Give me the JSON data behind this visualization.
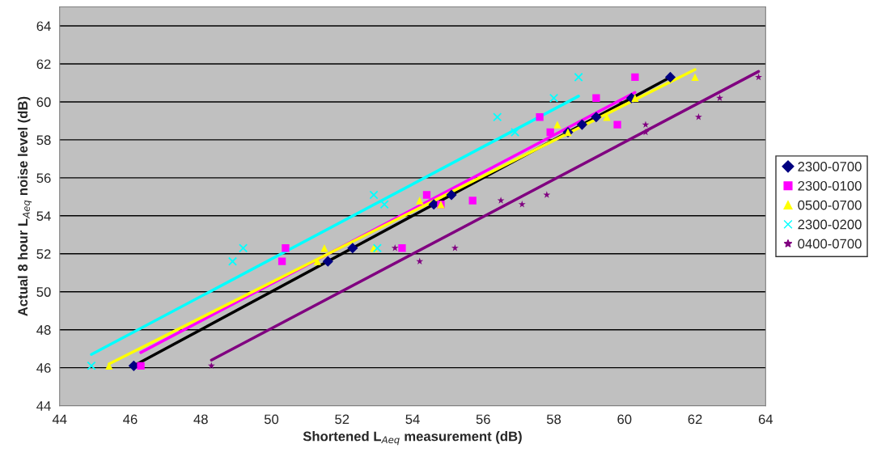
{
  "chart_data": {
    "type": "scatter",
    "xlabel": "Shortened L$_{Aeq}$ measurement (dB)",
    "ylabel": "Actual 8 hour L$_{Aeq}$ noise level (dB)",
    "xlim": [
      44,
      64
    ],
    "ylim": [
      44,
      65
    ],
    "xticks": [
      44,
      46,
      48,
      50,
      52,
      54,
      56,
      58,
      60,
      62,
      64
    ],
    "yticks": [
      44,
      46,
      48,
      50,
      52,
      54,
      56,
      58,
      60,
      62,
      64
    ],
    "grid": "y",
    "legend": "right",
    "series": [
      {
        "name": "2300-0700",
        "color": "#000080",
        "marker": "diamond",
        "x": [
          46.1,
          51.6,
          52.3,
          54.6,
          55.1,
          58.4,
          58.8,
          59.2,
          60.2,
          61.3
        ],
        "values": [
          46.1,
          51.6,
          52.3,
          54.6,
          55.1,
          58.4,
          58.8,
          59.2,
          60.2,
          61.3
        ]
      },
      {
        "name": "2300-0100",
        "color": "#ff00ff",
        "marker": "square",
        "x": [
          46.3,
          50.3,
          50.4,
          53.7,
          54.4,
          54.8,
          55.7,
          57.6,
          57.9,
          59.2,
          59.8,
          60.3
        ],
        "values": [
          46.1,
          51.6,
          52.3,
          52.3,
          55.1,
          54.6,
          54.8,
          59.2,
          58.4,
          60.2,
          58.8,
          61.3
        ]
      },
      {
        "name": "0500-0700",
        "color": "#ffff00",
        "marker": "triangle",
        "x": [
          45.4,
          51.3,
          51.5,
          52.9,
          54.2,
          54.8,
          58.1,
          58.4,
          59.5,
          60.3,
          62.0
        ],
        "values": [
          46.1,
          51.6,
          52.3,
          52.3,
          54.8,
          54.6,
          58.8,
          58.4,
          59.2,
          60.2,
          61.3
        ]
      },
      {
        "name": "2300-0200",
        "color": "#00ffff",
        "marker": "cross",
        "x": [
          44.9,
          48.9,
          49.2,
          52.9,
          53.0,
          53.2,
          56.4,
          56.9,
          58.0,
          58.7
        ],
        "values": [
          46.1,
          51.6,
          52.3,
          55.1,
          52.3,
          54.6,
          59.2,
          58.4,
          60.2,
          61.3
        ]
      },
      {
        "name": "0400-0700",
        "color": "#800080",
        "marker": "star",
        "x": [
          48.3,
          53.5,
          54.2,
          55.2,
          56.5,
          57.1,
          57.8,
          60.6,
          60.6,
          62.1,
          62.7,
          63.8
        ],
        "values": [
          46.1,
          52.3,
          51.6,
          52.3,
          54.8,
          54.6,
          55.1,
          58.8,
          58.4,
          59.2,
          60.2,
          61.3
        ]
      },
      {
        "type": "line",
        "color": "#000000",
        "x": [
          46.1,
          61.3
        ],
        "values": [
          46.1,
          61.3
        ]
      },
      {
        "type": "line",
        "color": "#ff00ff",
        "x": [
          46.3,
          60.3
        ],
        "values": [
          46.8,
          60.5
        ]
      },
      {
        "type": "line",
        "color": "#ffff00",
        "x": [
          45.4,
          62.0
        ],
        "values": [
          46.2,
          61.7
        ]
      },
      {
        "type": "line",
        "color": "#00ffff",
        "x": [
          44.9,
          58.7
        ],
        "values": [
          46.7,
          60.3
        ]
      },
      {
        "type": "line",
        "color": "#800080",
        "x": [
          48.3,
          63.8
        ],
        "values": [
          46.4,
          61.6
        ]
      }
    ]
  }
}
